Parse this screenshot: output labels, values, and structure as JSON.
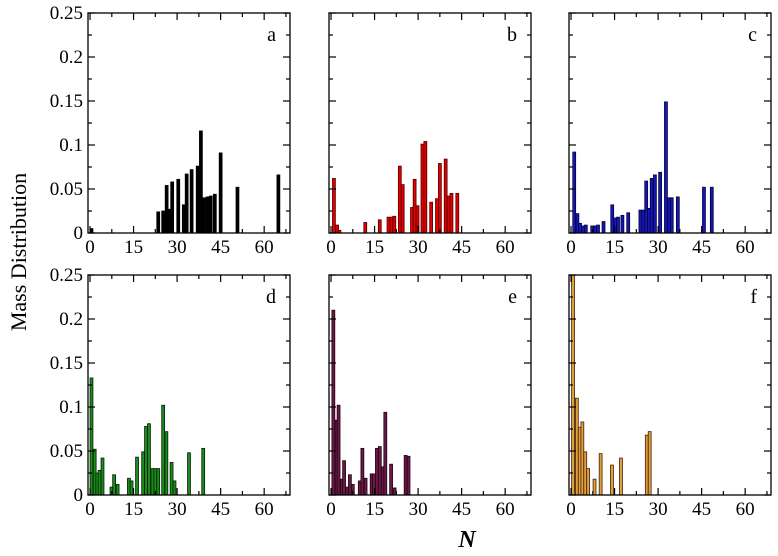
{
  "figure": {
    "ylabel": "Mass Distribution",
    "xlabel": "N"
  },
  "chart_data": [
    {
      "type": "bar",
      "panel": "a",
      "color": "#000000",
      "edge": "#000000",
      "xlim": [
        -0.7,
        68.9
      ],
      "ylim": [
        0,
        0.25
      ],
      "xticks": [
        "0",
        "15",
        "30",
        "45",
        "60"
      ],
      "yticks": [
        "0",
        "0.05",
        "0.1",
        "0.15",
        "0.2",
        "0.25"
      ],
      "xlabel": "N",
      "ylabel": "Mass Distribution",
      "bars": [
        [
          0,
          0.005
        ],
        [
          23,
          0.024
        ],
        [
          24.7,
          0.025
        ],
        [
          25.9,
          0.054
        ],
        [
          27,
          0.027
        ],
        [
          27.8,
          0.058
        ],
        [
          29.9,
          0.061
        ],
        [
          31.8,
          0.032
        ],
        [
          32.8,
          0.067
        ],
        [
          34.5,
          0.072
        ],
        [
          36.6,
          0.076
        ],
        [
          37.7,
          0.116
        ],
        [
          38.8,
          0.04
        ],
        [
          40,
          0.041
        ],
        [
          41.1,
          0.042
        ],
        [
          42.5,
          0.044
        ],
        [
          44.5,
          0.091
        ],
        [
          50.3,
          0.052
        ],
        [
          64.4,
          0.066
        ]
      ]
    },
    {
      "type": "bar",
      "panel": "b",
      "color": "#e00000",
      "edge": "#500000",
      "xlim": [
        -0.7,
        68.9
      ],
      "ylim": [
        0,
        0.25
      ],
      "xticks": [
        "0",
        "15",
        "30",
        "45",
        "60"
      ],
      "yticks": [
        "0",
        "0.05",
        "0.1",
        "0.15",
        "0.2",
        "0.25"
      ],
      "xlabel": "N",
      "ylabel": "Mass Distribution",
      "bars": [
        [
          0.5,
          0.062
        ],
        [
          1.6,
          0.009
        ],
        [
          2.4,
          0.003
        ],
        [
          11.3,
          0.012
        ],
        [
          16.3,
          0.015
        ],
        [
          19.3,
          0.018
        ],
        [
          20.3,
          0.018
        ],
        [
          21.3,
          0.019
        ],
        [
          23.2,
          0.076
        ],
        [
          24.2,
          0.055
        ],
        [
          27.4,
          0.029
        ],
        [
          28.3,
          0.061
        ],
        [
          29.3,
          0.031
        ],
        [
          31,
          0.101
        ],
        [
          32,
          0.104
        ],
        [
          34,
          0.035
        ],
        [
          36,
          0.039
        ],
        [
          37,
          0.079
        ],
        [
          39,
          0.084
        ],
        [
          40,
          0.042
        ],
        [
          41,
          0.045
        ],
        [
          43,
          0.045
        ]
      ]
    },
    {
      "type": "bar",
      "panel": "c",
      "color": "#1818b0",
      "edge": "#000040",
      "xlim": [
        -0.7,
        68.9
      ],
      "ylim": [
        0,
        0.25
      ],
      "xticks": [
        "0",
        "15",
        "30",
        "45",
        "60"
      ],
      "yticks": [
        "0",
        "0.05",
        "0.1",
        "0.15",
        "0.2",
        "0.25"
      ],
      "xlabel": "N",
      "ylabel": "Mass Distribution",
      "bars": [
        [
          0.6,
          0.092
        ],
        [
          1.7,
          0.022
        ],
        [
          2.6,
          0.011
        ],
        [
          3.6,
          0.008
        ],
        [
          4.6,
          0.009
        ],
        [
          6.8,
          0.008
        ],
        [
          7.8,
          0.008
        ],
        [
          8.8,
          0.009
        ],
        [
          10.7,
          0.013
        ],
        [
          13.7,
          0.032
        ],
        [
          14.7,
          0.017
        ],
        [
          15.7,
          0.018
        ],
        [
          17.2,
          0.02
        ],
        [
          19.2,
          0.023
        ],
        [
          23.4,
          0.026
        ],
        [
          24.4,
          0.026
        ],
        [
          25.4,
          0.059
        ],
        [
          26.4,
          0.028
        ],
        [
          27.3,
          0.062
        ],
        [
          28.4,
          0.066
        ],
        [
          30.2,
          0.069
        ],
        [
          32.2,
          0.149
        ],
        [
          33.2,
          0.04
        ],
        [
          34.2,
          0.04
        ],
        [
          36.3,
          0.041
        ],
        [
          45.3,
          0.052
        ],
        [
          48,
          0.052
        ]
      ]
    },
    {
      "type": "bar",
      "panel": "d",
      "color": "#1e8a1e",
      "edge": "#002000",
      "xlim": [
        -0.7,
        68.9
      ],
      "ylim": [
        0,
        0.25
      ],
      "xticks": [
        "0",
        "15",
        "30",
        "45",
        "60"
      ],
      "yticks": [
        "0",
        "0.05",
        "0.1",
        "0.15",
        "0.2",
        "0.25"
      ],
      "xlabel": "N",
      "ylabel": "Mass Distribution",
      "bars": [
        [
          0,
          0.133
        ],
        [
          1.1,
          0.052
        ],
        [
          2,
          0.025
        ],
        [
          2.8,
          0.028
        ],
        [
          3.8,
          0.042
        ],
        [
          6.9,
          0.009
        ],
        [
          7.8,
          0.023
        ],
        [
          9,
          0.012
        ],
        [
          12.9,
          0.019
        ],
        [
          13.8,
          0.016
        ],
        [
          15.7,
          0.043
        ],
        [
          17.8,
          0.049
        ],
        [
          18.8,
          0.078
        ],
        [
          19.8,
          0.081
        ],
        [
          21,
          0.03
        ],
        [
          22,
          0.03
        ],
        [
          23,
          0.03
        ],
        [
          24.7,
          0.102
        ],
        [
          25.8,
          0.072
        ],
        [
          27.6,
          0.037
        ],
        [
          28.6,
          0.016
        ],
        [
          33.6,
          0.048
        ],
        [
          38.5,
          0.053
        ]
      ]
    },
    {
      "type": "bar",
      "panel": "e",
      "color": "#6a1a48",
      "edge": "#200010",
      "xlim": [
        -0.7,
        68.9
      ],
      "ylim": [
        0,
        0.25
      ],
      "xticks": [
        "0",
        "15",
        "30",
        "45",
        "60"
      ],
      "yticks": [
        "0",
        "0.05",
        "0.1",
        "0.15",
        "0.2",
        "0.25"
      ],
      "xlabel": "N",
      "ylabel": "Mass Distribution",
      "bars": [
        [
          0.3,
          0.21
        ],
        [
          1.4,
          0.085
        ],
        [
          2.1,
          0.102
        ],
        [
          3.3,
          0.018
        ],
        [
          4,
          0.039
        ],
        [
          5.1,
          0.009
        ],
        [
          6,
          0.023
        ],
        [
          7,
          0.012
        ],
        [
          9.4,
          0.016
        ],
        [
          10.3,
          0.053
        ],
        [
          11.4,
          0.019
        ],
        [
          13.5,
          0.024
        ],
        [
          14.3,
          0.024
        ],
        [
          15.3,
          0.053
        ],
        [
          16.3,
          0.055
        ],
        [
          17.3,
          0.032
        ],
        [
          18.2,
          0.094
        ],
        [
          20.2,
          0.035
        ],
        [
          21.4,
          0.008
        ],
        [
          25.2,
          0.045
        ],
        [
          26.2,
          0.044
        ]
      ]
    },
    {
      "type": "bar",
      "panel": "f",
      "color": "#e0a040",
      "edge": "#402000",
      "xlim": [
        -0.7,
        68.9
      ],
      "ylim": [
        0,
        0.25
      ],
      "xticks": [
        "0",
        "15",
        "30",
        "45",
        "60"
      ],
      "yticks": [
        "0",
        "0.05",
        "0.1",
        "0.15",
        "0.2",
        "0.25"
      ],
      "xlabel": "N",
      "ylabel": "Mass Distribution",
      "bars": [
        [
          0.2,
          0.28
        ],
        [
          1.5,
          0.11
        ],
        [
          2.5,
          0.077
        ],
        [
          3.4,
          0.083
        ],
        [
          4.4,
          0.049
        ],
        [
          5.4,
          0.03
        ],
        [
          7.6,
          0.018
        ],
        [
          9.7,
          0.047
        ],
        [
          13.6,
          0.034
        ],
        [
          16.7,
          0.042
        ],
        [
          25.6,
          0.068
        ],
        [
          26.6,
          0.072
        ]
      ]
    }
  ]
}
